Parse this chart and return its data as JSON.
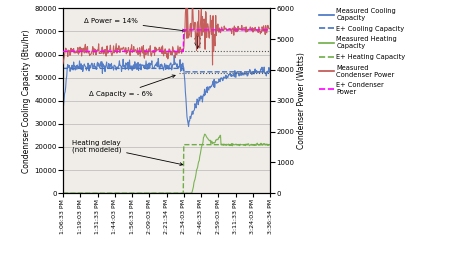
{
  "ylabel_left": "Condenrser Cooling Capacity (Btu/hr)",
  "ylabel_right": "Condenser Power (Watts)",
  "ylim_left": [
    0,
    80000
  ],
  "ylim_right": [
    0,
    6000
  ],
  "yticks_left": [
    0,
    10000,
    20000,
    30000,
    40000,
    50000,
    60000,
    70000,
    80000
  ],
  "yticks_right": [
    0,
    1000,
    2000,
    3000,
    4000,
    5000,
    6000
  ],
  "xtick_labels": [
    "1:06:33 PM",
    "1:19:03 PM",
    "1:31:33 PM",
    "1:44:03 PM",
    "1:56:33 PM",
    "2:09:03 PM",
    "2:21:34 PM",
    "2:34:03 PM",
    "2:46:33 PM",
    "2:59:03 PM",
    "3:11:33 PM",
    "3:24:03 PM",
    "3:36:34 PM"
  ],
  "color_blue": "#4472C4",
  "color_green": "#70AD47",
  "color_red": "#C0504D",
  "color_magenta": "#FF00FF",
  "annotation_power": "Δ Power = 14%",
  "annotation_capacity": "Δ Capacity = - 6%",
  "annotation_heating": "Heating delay\n(not modeled)",
  "dotted_line1": 61500,
  "dotted_line2": 52000,
  "eplus_cooling_val": 54000,
  "eplus_cooling_after": 52500,
  "eplus_heating_val": 21000,
  "eplus_condenser_before": 4600,
  "eplus_condenser_after": 5300,
  "background_color": "#f0ede8"
}
